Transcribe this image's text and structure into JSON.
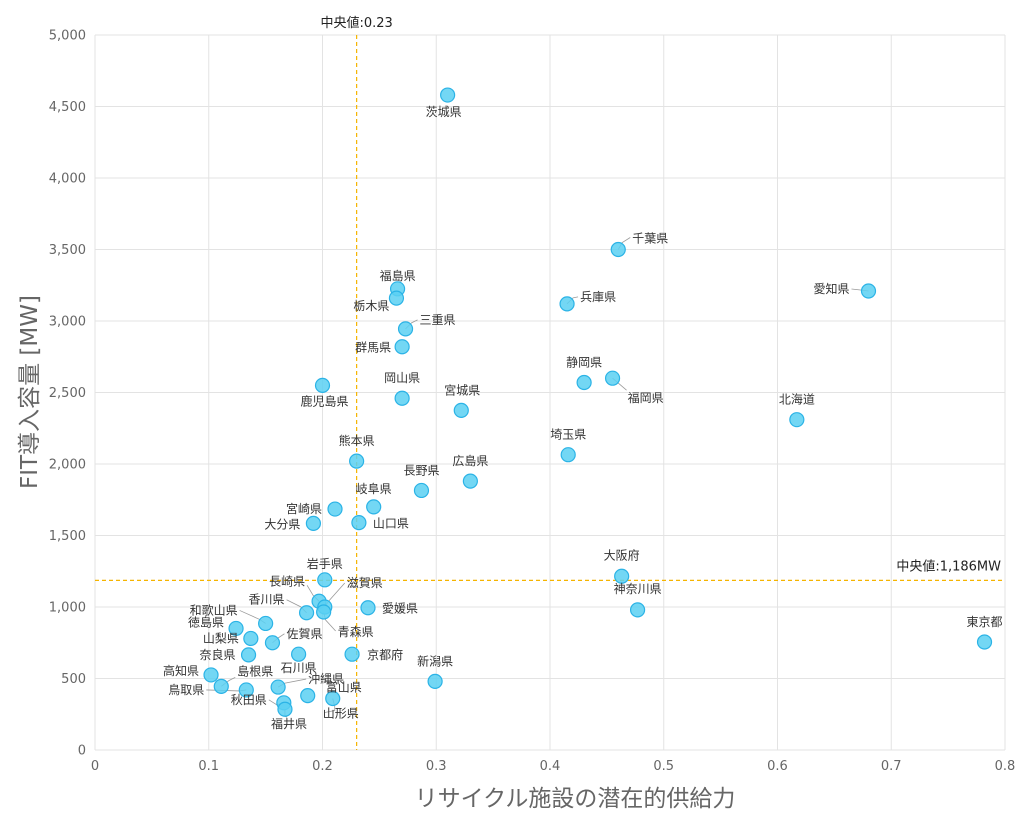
{
  "chart_data": {
    "type": "scatter",
    "xlabel": "リサイクル施設の潜在的供給力",
    "ylabel": "FIT導入容量 [MW]",
    "xlim": [
      0,
      0.8
    ],
    "ylim": [
      0,
      5000
    ],
    "x_ticks": [
      "0",
      "0.1",
      "0.2",
      "0.3",
      "0.4",
      "0.5",
      "0.6",
      "0.7",
      "0.8"
    ],
    "y_ticks": [
      "0",
      "500",
      "1,000",
      "1,500",
      "2,000",
      "2,500",
      "3,000",
      "3,500",
      "4,000",
      "4,500",
      "5,000"
    ],
    "grid": true,
    "color": "#5bd0f2",
    "median_color": "#f5b400",
    "median_x": {
      "value": 0.23,
      "label": "中央値:0.23"
    },
    "median_y": {
      "value": 1186,
      "label": "中央値:1,186MW"
    },
    "points": [
      {
        "name": "茨城県",
        "x": 0.31,
        "y": 4580
      },
      {
        "name": "千葉県",
        "x": 0.46,
        "y": 3500
      },
      {
        "name": "愛知県",
        "x": 0.68,
        "y": 3210
      },
      {
        "name": "福島県",
        "x": 0.266,
        "y": 3225
      },
      {
        "name": "栃木県",
        "x": 0.265,
        "y": 3160
      },
      {
        "name": "兵庫県",
        "x": 0.415,
        "y": 3120
      },
      {
        "name": "三重県",
        "x": 0.273,
        "y": 2945
      },
      {
        "name": "群馬県",
        "x": 0.27,
        "y": 2820
      },
      {
        "name": "静岡県",
        "x": 0.43,
        "y": 2570
      },
      {
        "name": "福岡県",
        "x": 0.455,
        "y": 2600
      },
      {
        "name": "鹿児島県",
        "x": 0.2,
        "y": 2550
      },
      {
        "name": "岡山県",
        "x": 0.27,
        "y": 2460
      },
      {
        "name": "宮城県",
        "x": 0.322,
        "y": 2375
      },
      {
        "name": "北海道",
        "x": 0.617,
        "y": 2310
      },
      {
        "name": "埼玉県",
        "x": 0.416,
        "y": 2065
      },
      {
        "name": "熊本県",
        "x": 0.23,
        "y": 2020
      },
      {
        "name": "広島県",
        "x": 0.33,
        "y": 1880
      },
      {
        "name": "長野県",
        "x": 0.287,
        "y": 1815
      },
      {
        "name": "岐阜県",
        "x": 0.245,
        "y": 1700
      },
      {
        "name": "宮崎県",
        "x": 0.211,
        "y": 1685
      },
      {
        "name": "大分県",
        "x": 0.192,
        "y": 1585
      },
      {
        "name": "山口県",
        "x": 0.232,
        "y": 1590
      },
      {
        "name": "大阪府",
        "x": 0.463,
        "y": 1215
      },
      {
        "name": "岩手県",
        "x": 0.202,
        "y": 1190
      },
      {
        "name": "長崎県",
        "x": 0.197,
        "y": 1040
      },
      {
        "name": "滋賀県",
        "x": 0.202,
        "y": 1000
      },
      {
        "name": "神奈川県",
        "x": 0.477,
        "y": 980
      },
      {
        "name": "愛媛県",
        "x": 0.24,
        "y": 995
      },
      {
        "name": "香川県",
        "x": 0.186,
        "y": 960
      },
      {
        "name": "青森県",
        "x": 0.201,
        "y": 965
      },
      {
        "name": "和歌山県",
        "x": 0.15,
        "y": 885
      },
      {
        "name": "徳島県",
        "x": 0.124,
        "y": 850
      },
      {
        "name": "山梨県",
        "x": 0.137,
        "y": 780
      },
      {
        "name": "佐賀県",
        "x": 0.156,
        "y": 750
      },
      {
        "name": "東京都",
        "x": 0.782,
        "y": 755
      },
      {
        "name": "京都府",
        "x": 0.226,
        "y": 670
      },
      {
        "name": "奈良県",
        "x": 0.135,
        "y": 665
      },
      {
        "name": "石川県",
        "x": 0.179,
        "y": 670
      },
      {
        "name": "高知県",
        "x": 0.102,
        "y": 525
      },
      {
        "name": "新潟県",
        "x": 0.299,
        "y": 480
      },
      {
        "name": "島根県",
        "x": 0.111,
        "y": 445
      },
      {
        "name": "沖縄県",
        "x": 0.161,
        "y": 440
      },
      {
        "name": "鳥取県",
        "x": 0.133,
        "y": 420
      },
      {
        "name": "富山県",
        "x": 0.187,
        "y": 380
      },
      {
        "name": "山形県",
        "x": 0.209,
        "y": 360
      },
      {
        "name": "秋田県",
        "x": 0.166,
        "y": 330
      },
      {
        "name": "福井県",
        "x": 0.167,
        "y": 285
      }
    ]
  }
}
